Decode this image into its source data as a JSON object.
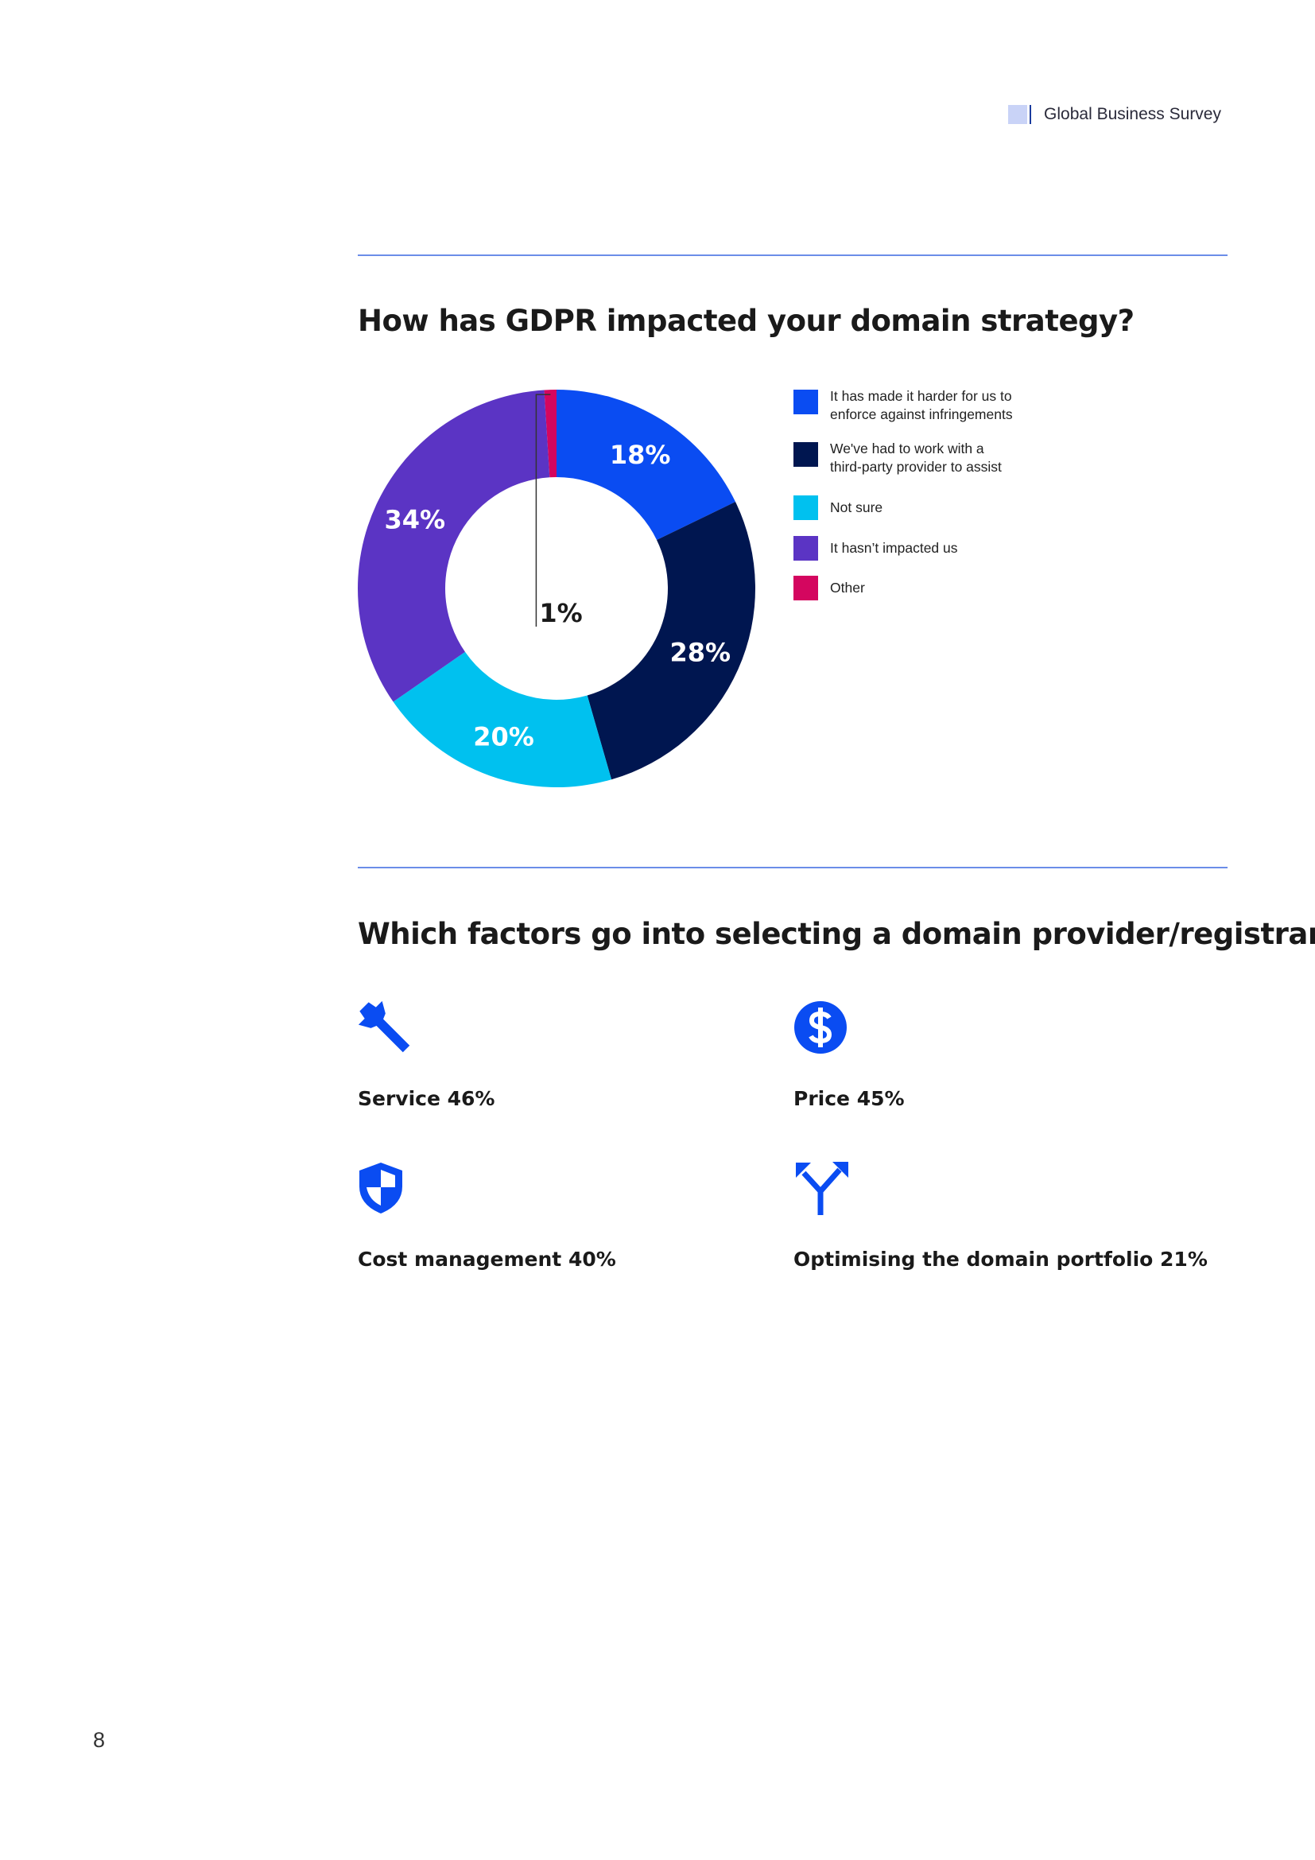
{
  "header": {
    "label": "Global Business Survey"
  },
  "section1": {
    "heading": "How has GDPR impacted your domain strategy?"
  },
  "chart_data": {
    "type": "pie",
    "variant": "donut",
    "title": "How has GDPR impacted your domain strategy?",
    "categories": [
      "It has made it harder for us to enforce against infringements",
      "We've had to work with a third-party provider to assist",
      "Not sure",
      "It hasn't impacted us",
      "Other"
    ],
    "values": [
      18,
      28,
      20,
      34,
      1
    ],
    "value_labels": [
      "18%",
      "28%",
      "20%",
      "34%",
      "1%"
    ],
    "colors": [
      "#0a4cf2",
      "#001650",
      "#00c1ef",
      "#5b34c4",
      "#d4065f"
    ],
    "legend": {
      "position": "right",
      "items": [
        {
          "line1": "It has made it harder for us to",
          "line2": "enforce against infringements",
          "color": "#0a4cf2"
        },
        {
          "line1": "We've had to work with a",
          "line2": "third-party provider to assist",
          "color": "#001650"
        },
        {
          "line1": "Not sure",
          "line2": "",
          "color": "#00c1ef"
        },
        {
          "line1": "It hasn’t impacted us",
          "line2": "",
          "color": "#5b34c4"
        },
        {
          "line1": "Other",
          "line2": "",
          "color": "#d4065f"
        }
      ]
    }
  },
  "section2": {
    "heading": "Which factors go into selecting a domain provider/registrar?",
    "factors": [
      {
        "label": "Service 46%",
        "icon": "wrench-icon"
      },
      {
        "label": "Price 45%",
        "icon": "dollar-coin-icon"
      },
      {
        "label": "Cost management 40%",
        "icon": "shield-icon"
      },
      {
        "label": "Optimising the domain portfolio 21%",
        "icon": "fork-arrows-icon"
      }
    ],
    "icon_color": "#0a4cf2"
  },
  "footer": {
    "page_number": "8"
  }
}
